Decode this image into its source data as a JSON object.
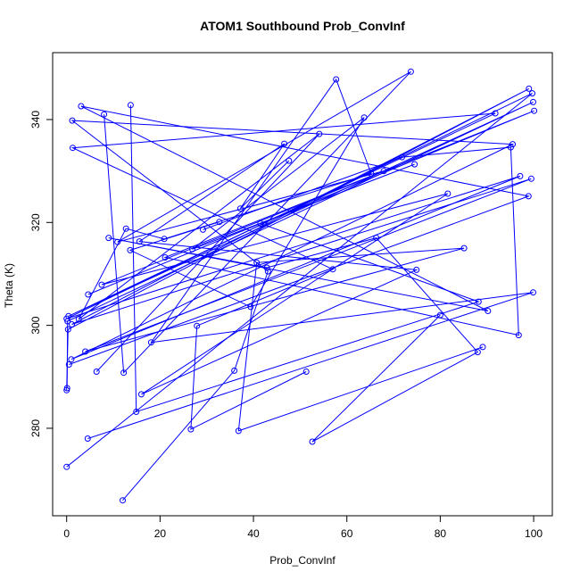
{
  "chart_data": {
    "type": "line",
    "title": "ATOM1 Southbound Prob_ConvInf",
    "xlabel": "Prob_ConvInf",
    "ylabel": "Theta (K)",
    "xlim": [
      -3,
      104
    ],
    "ylim": [
      263,
      353
    ],
    "xticks": [
      0,
      20,
      40,
      60,
      80,
      100
    ],
    "yticks": [
      280,
      300,
      320,
      340
    ],
    "xtick_labels": [
      "0",
      "20",
      "40",
      "60",
      "80",
      "100"
    ],
    "ytick_labels": [
      "280",
      "300",
      "320",
      "340"
    ],
    "grid": false,
    "legend": "none",
    "marker": "open-circle",
    "color": "#0000ff",
    "series": [
      {
        "values": [
          [
            0.0,
            272.5
          ],
          [
            99.7,
            345.1
          ],
          [
            0.0,
            301.3
          ],
          [
            97.1,
            329.0
          ],
          [
            1.0,
            293.4
          ],
          [
            95.5,
            335.2
          ],
          [
            1.2,
            339.8
          ],
          [
            43.1,
            310.5
          ],
          [
            35.9,
            291.2
          ],
          [
            12.0,
            266.0
          ]
        ]
      },
      {
        "values": [
          [
            0.1,
            287.8
          ],
          [
            0.2,
            300.8
          ],
          [
            99.9,
            343.4
          ],
          [
            0.4,
            301.8
          ],
          [
            91.8,
            341.2
          ],
          [
            1.3,
            334.5
          ],
          [
            57.0,
            310.9
          ],
          [
            27.9,
            299.9
          ],
          [
            26.6,
            279.8
          ],
          [
            51.3,
            291.0
          ]
        ]
      },
      {
        "values": [
          [
            0.0,
            287.4
          ],
          [
            0.3,
            299.2
          ],
          [
            99.0,
            346.0
          ],
          [
            1.1,
            300.2
          ],
          [
            99.5,
            328.5
          ],
          [
            4.0,
            294.9
          ],
          [
            85.1,
            315.0
          ],
          [
            40.7,
            312.2
          ],
          [
            36.8,
            279.5
          ],
          [
            89.1,
            295.8
          ]
        ]
      },
      {
        "values": [
          [
            0.5,
            292.4
          ],
          [
            98.9,
            325.1
          ],
          [
            3.1,
            342.6
          ],
          [
            90.2,
            302.8
          ],
          [
            9.0,
            317.0
          ],
          [
            42.9,
            311.2
          ],
          [
            66.3,
            317.0
          ],
          [
            88.0,
            294.8
          ],
          [
            52.6,
            277.4
          ],
          [
            80.0,
            302.0
          ]
        ]
      },
      {
        "values": [
          [
            4.6,
            306.0
          ],
          [
            100.1,
            341.7
          ],
          [
            7.5,
            307.9
          ],
          [
            81.6,
            325.6
          ],
          [
            16.0,
            286.6
          ],
          [
            74.9,
            310.8
          ],
          [
            15.6,
            316.3
          ],
          [
            46.6,
            335.3
          ],
          [
            37.2,
            322.7
          ],
          [
            47.6,
            332.0
          ]
        ]
      },
      {
        "values": [
          [
            4.5,
            278.0
          ],
          [
            99.9,
            306.4
          ],
          [
            18.1,
            296.7
          ],
          [
            57.7,
            347.8
          ],
          [
            65.2,
            329.5
          ],
          [
            20.9,
            316.8
          ],
          [
            12.7,
            318.8
          ],
          [
            2.6,
            301.2
          ],
          [
            54.1,
            337.2
          ],
          [
            6.4,
            291.0
          ]
        ]
      },
      {
        "values": [
          [
            8.0,
            341.0
          ],
          [
            12.2,
            290.8
          ],
          [
            73.7,
            349.3
          ],
          [
            10.9,
            316.2
          ],
          [
            67.9,
            330.0
          ],
          [
            21.1,
            313.2
          ],
          [
            96.8,
            298.1
          ],
          [
            95.1,
            334.6
          ],
          [
            71.8,
            332.7
          ],
          [
            29.2,
            318.6
          ]
        ]
      },
      {
        "values": [
          [
            13.7,
            342.8
          ],
          [
            14.9,
            283.2
          ],
          [
            88.2,
            304.6
          ],
          [
            41.5,
            319.8
          ],
          [
            74.5,
            331.3
          ],
          [
            26.9,
            314.8
          ],
          [
            63.7,
            340.4
          ],
          [
            39.4,
            303.6
          ],
          [
            13.6,
            314.6
          ],
          [
            32.7,
            320.1
          ]
        ]
      }
    ]
  }
}
